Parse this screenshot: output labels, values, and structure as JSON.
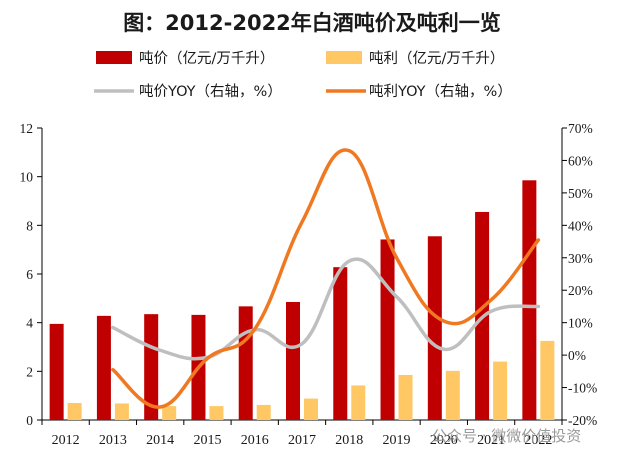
{
  "chart_data": {
    "type": "bar",
    "title": "图：2012-2022年白酒吨价及吨利一览",
    "categories": [
      "2012",
      "2013",
      "2014",
      "2015",
      "2016",
      "2017",
      "2018",
      "2019",
      "2020",
      "2021",
      "2022"
    ],
    "series": [
      {
        "name": "吨价（亿元/万千升）",
        "kind": "bar",
        "axis": "left",
        "color": "#C00000",
        "values": [
          3.95,
          4.28,
          4.35,
          4.32,
          4.67,
          4.85,
          6.28,
          7.42,
          7.55,
          8.55,
          9.85
        ]
      },
      {
        "name": "吨利（亿元/万千升）",
        "kind": "bar",
        "axis": "left",
        "color": "#FFC864",
        "values": [
          0.7,
          0.68,
          0.57,
          0.57,
          0.62,
          0.88,
          1.42,
          1.85,
          2.02,
          2.4,
          3.25
        ]
      },
      {
        "name": "吨价YOY（右轴，%）",
        "kind": "line",
        "axis": "right",
        "color": "#BFBFBF",
        "values": [
          null,
          8.5,
          1.5,
          -0.7,
          7.8,
          3.5,
          29.0,
          18.0,
          1.8,
          13.5,
          15.0
        ]
      },
      {
        "name": "吨利YOY（右轴，%）",
        "kind": "line",
        "axis": "right",
        "color": "#F07820",
        "values": [
          null,
          -4.5,
          -16.0,
          -1.0,
          8.0,
          41.0,
          63.0,
          30.0,
          10.5,
          17.0,
          35.5
        ]
      }
    ],
    "yleft": {
      "min": 0,
      "max": 12,
      "ticks": [
        "0",
        "2",
        "4",
        "6",
        "8",
        "10",
        "12"
      ]
    },
    "yright": {
      "min": -20,
      "max": 70,
      "ticks": [
        "-20%",
        "-10%",
        "0%",
        "10%",
        "20%",
        "30%",
        "40%",
        "50%",
        "60%",
        "70%"
      ]
    },
    "legend_position": "top"
  },
  "watermark": "公众号 · 微微价值投资",
  "colors": {
    "axis": "#000000"
  }
}
